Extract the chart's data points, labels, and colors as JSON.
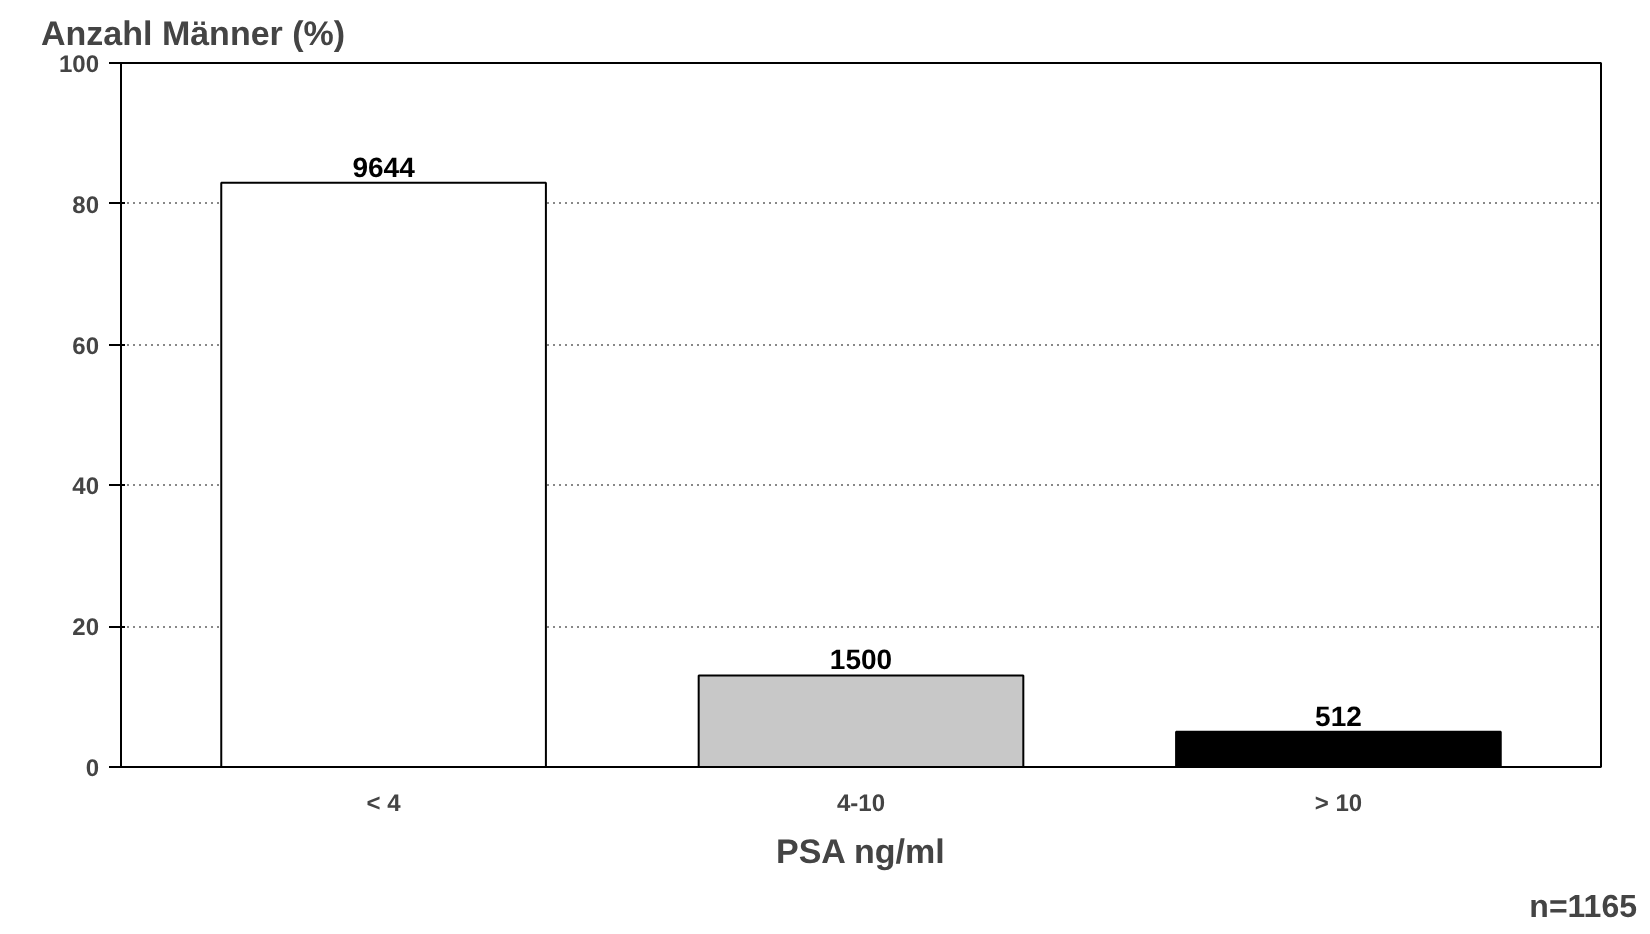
{
  "chart_data": {
    "type": "bar",
    "title": "Anzahl Männer (%)",
    "xlabel": "PSA ng/ml",
    "categories": [
      "< 4",
      "4-10",
      "> 10"
    ],
    "values": [
      83,
      13,
      5
    ],
    "colors": [
      "#ffffff",
      "#c8c8c8",
      "#000000"
    ],
    "ylim": [
      0,
      100
    ],
    "yticks": [
      0,
      20,
      40,
      60,
      80,
      100
    ],
    "grid": "y",
    "annotations": [
      {
        "text": "9644",
        "x": "< 4",
        "y": 83
      },
      {
        "text": "1500",
        "x": "4-10",
        "y": 13
      },
      {
        "text": "512",
        "x": "> 10",
        "y": 5
      },
      "n=1165"
    ]
  }
}
